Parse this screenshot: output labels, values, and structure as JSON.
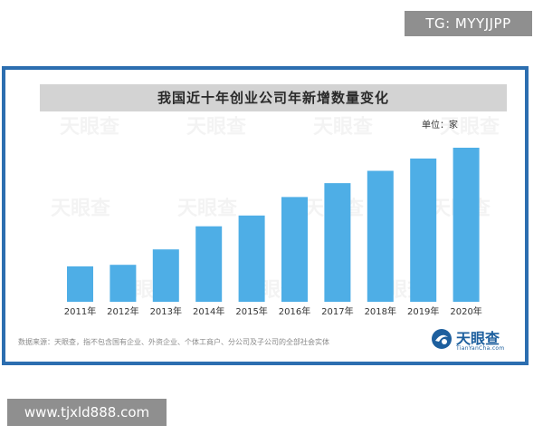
{
  "top_tag": "TG: MYYJJPP",
  "bottom_tag": "www.tjxld888.com",
  "unit_label": "单位：家",
  "source_note": "数据来源：天眼查，指不包含国有企业、外资企业、个体工商户、分公司及子公司的全部社会实体",
  "brand": {
    "name": "天眼查",
    "url": "TianYanCha.com",
    "icon": "tianyancha-logo-icon"
  },
  "watermark_text": "天眼查",
  "colors": {
    "bar": "#4eaee6",
    "frame": "#2c6eb0",
    "title_band": "#d3d3d3"
  },
  "chart_data": {
    "type": "bar",
    "title": "我国近十年创业公司年新增数量变化",
    "xlabel": "",
    "ylabel": "",
    "categories": [
      "2011年",
      "2012年",
      "2013年",
      "2014年",
      "2015年",
      "2016年",
      "2017年",
      "2018年",
      "2019年",
      "2020年"
    ],
    "values": [
      23,
      24,
      34,
      49,
      56,
      68,
      77,
      85,
      93,
      100
    ],
    "ylim": [
      0,
      100
    ],
    "grid": false,
    "legend": "none"
  }
}
